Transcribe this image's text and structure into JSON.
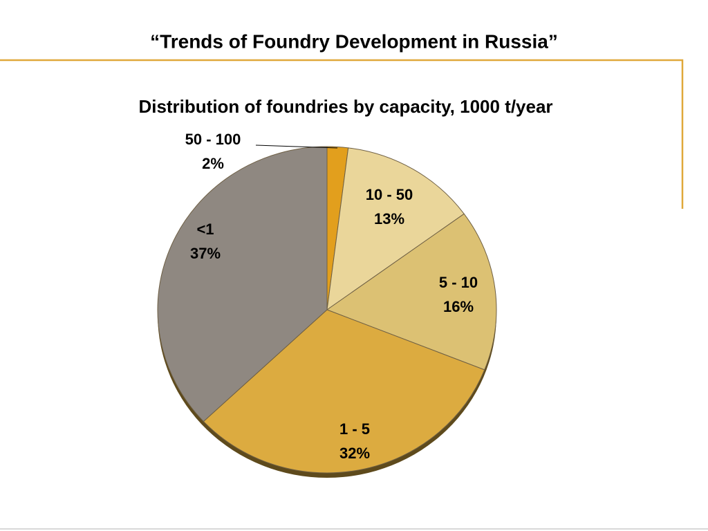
{
  "header": {
    "title": "“Trends of Foundry Development in Russia”"
  },
  "chart_data": {
    "type": "pie",
    "title": "Distribution of foundries by capacity, 1000 t/year",
    "categories": [
      "50 - 100",
      "10 - 50",
      "5 - 10",
      "1 - 5",
      "<1"
    ],
    "values": [
      2,
      13,
      16,
      32,
      37
    ],
    "value_labels": [
      "2%",
      "13%",
      "16%",
      "32%",
      "37%"
    ],
    "colors": [
      "#e29f1d",
      "#ead69a",
      "#dcc173",
      "#dcab40",
      "#8f8881"
    ]
  }
}
